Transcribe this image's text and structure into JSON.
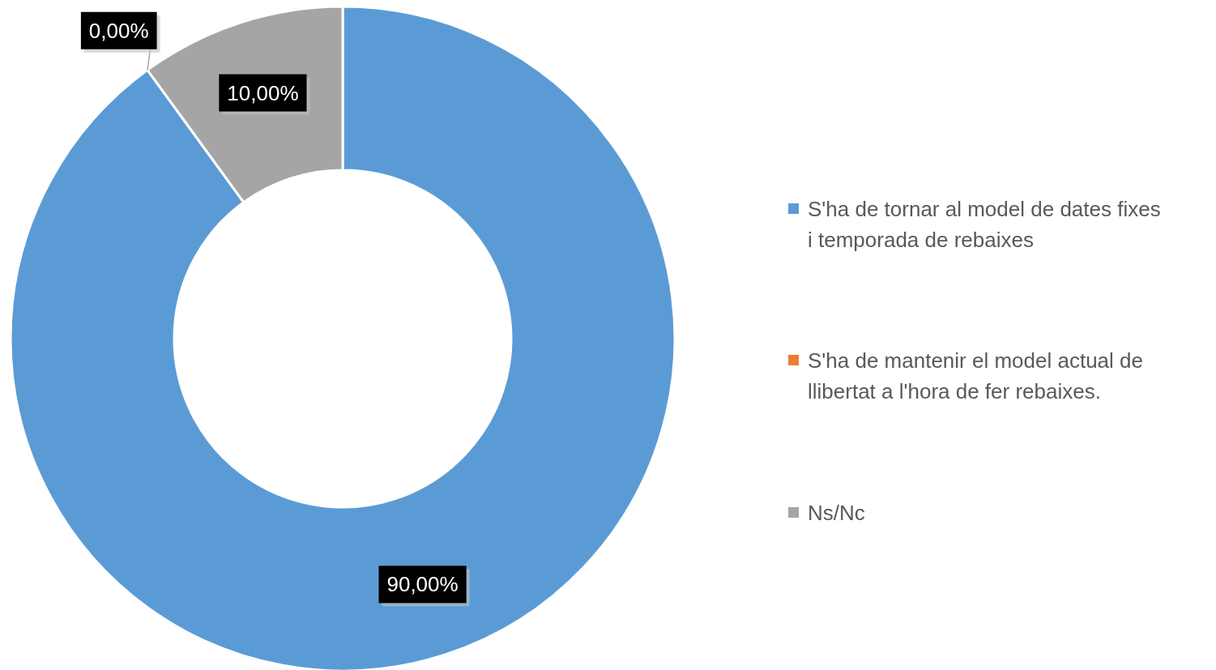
{
  "chart_data": {
    "type": "donut",
    "categories": [
      "S'ha de tornar al model de dates fixes i temporada de rebaixes",
      "S'ha de mantenir el model actual de llibertat a l'hora de fer rebaixes.",
      "Ns/Nc"
    ],
    "values": [
      90,
      0,
      10
    ],
    "colors": [
      "#5b9bd5",
      "#ed7d31",
      "#a5a5a5"
    ],
    "value_labels": [
      "90,00%",
      "0,00%",
      "10,00%"
    ],
    "legend": "right"
  }
}
